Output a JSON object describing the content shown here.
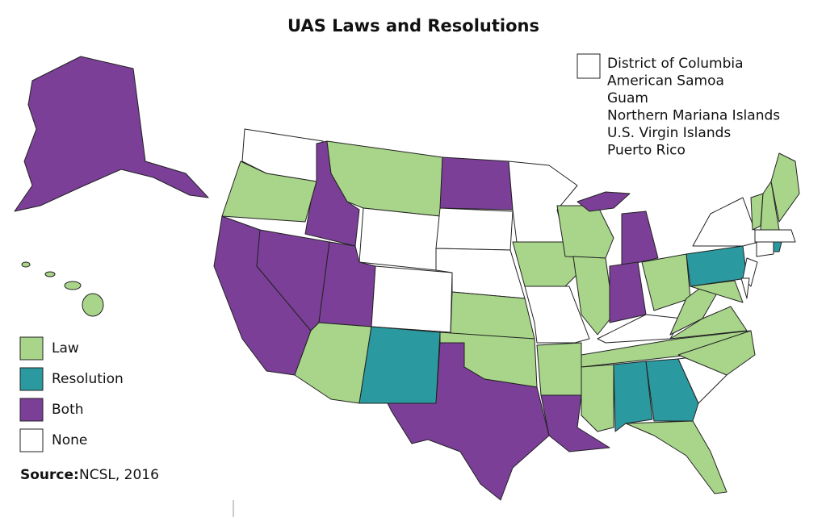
{
  "header": {
    "title": "UAS Laws and Resolutions"
  },
  "legend": [
    {
      "label": "Law",
      "color": "#a8d58a"
    },
    {
      "label": "Resolution",
      "color": "#2a9aa0"
    },
    {
      "label": "Both",
      "color": "#7b3f98"
    },
    {
      "label": "None",
      "color": "#ffffff"
    }
  ],
  "territories": {
    "color": "#ffffff",
    "names": [
      "District of Columbia",
      "American Samoa",
      "Guam",
      "Northern Mariana Islands",
      "U.S. Virgin Islands",
      "Puerto Rico"
    ]
  },
  "source": {
    "label": "Source:",
    "text": "NCSL, 2016"
  }
}
